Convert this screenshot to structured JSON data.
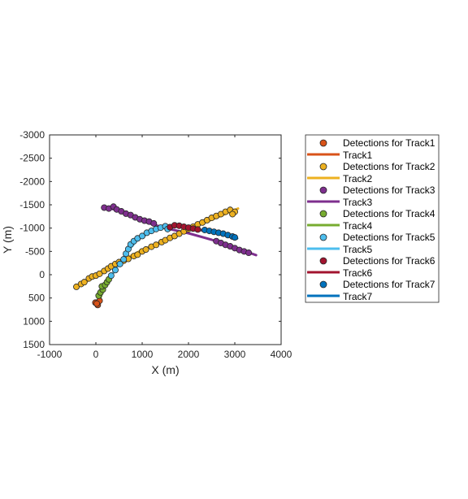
{
  "chart_data": {
    "type": "scatter",
    "title": "",
    "xlabel": "X (m)",
    "ylabel": "Y (m)",
    "xlim": [
      -1000,
      4000
    ],
    "ylim": [
      1500,
      -3000
    ],
    "y_reversed": true,
    "xticks": [
      -1000,
      0,
      1000,
      2000,
      3000,
      4000
    ],
    "xtick_labels": [
      "-1000",
      "0",
      "1000",
      "2000",
      "3000",
      "4000"
    ],
    "yticks": [
      -3000,
      -2500,
      -2000,
      -1500,
      -1000,
      -500,
      0,
      500,
      1000,
      1500
    ],
    "ytick_labels": [
      "-3000",
      "-2500",
      "-2000",
      "-1500",
      "-1000",
      "-500",
      "0",
      "500",
      "1000",
      "1500"
    ],
    "grid": false,
    "legend_position": "outside-right",
    "series": [
      {
        "name": "Track1",
        "color": "#D95319",
        "detections_label": "Detections for Track1",
        "track_label": "Track1",
        "track": [
          [
            0,
            640
          ],
          [
            40,
            580
          ],
          [
            90,
            520
          ]
        ],
        "detections": [
          [
            -10,
            600
          ],
          [
            40,
            650
          ],
          [
            80,
            560
          ],
          [
            20,
            620
          ]
        ]
      },
      {
        "name": "Track2",
        "color": "#EDB120",
        "detections_label": "Detections for Track2",
        "track_label": "Track2",
        "track": [
          [
            -450,
            290
          ],
          [
            0,
            30
          ],
          [
            500,
            -270
          ],
          [
            1000,
            -530
          ],
          [
            1500,
            -750
          ],
          [
            2000,
            -970
          ],
          [
            2500,
            -1180
          ],
          [
            3070,
            -1420
          ]
        ],
        "detections": [
          [
            -420,
            260
          ],
          [
            -320,
            200
          ],
          [
            -250,
            160
          ],
          [
            -150,
            80
          ],
          [
            -80,
            40
          ],
          [
            0,
            20
          ],
          [
            80,
            -20
          ],
          [
            180,
            -80
          ],
          [
            260,
            -130
          ],
          [
            330,
            -180
          ],
          [
            420,
            -230
          ],
          [
            500,
            -270
          ],
          [
            600,
            -300
          ],
          [
            700,
            -340
          ],
          [
            820,
            -400
          ],
          [
            900,
            -430
          ],
          [
            1000,
            -500
          ],
          [
            1080,
            -540
          ],
          [
            1200,
            -600
          ],
          [
            1300,
            -640
          ],
          [
            1420,
            -700
          ],
          [
            1500,
            -740
          ],
          [
            1600,
            -790
          ],
          [
            1700,
            -830
          ],
          [
            1800,
            -880
          ],
          [
            1900,
            -930
          ],
          [
            2000,
            -980
          ],
          [
            2100,
            -1030
          ],
          [
            2200,
            -1080
          ],
          [
            2300,
            -1120
          ],
          [
            2400,
            -1170
          ],
          [
            2500,
            -1220
          ],
          [
            2600,
            -1260
          ],
          [
            2700,
            -1300
          ],
          [
            2800,
            -1350
          ],
          [
            2900,
            -1390
          ],
          [
            3000,
            -1350
          ],
          [
            2950,
            -1300
          ]
        ]
      },
      {
        "name": "Track3",
        "color": "#7E2F8E",
        "detections_label": "Detections for Track3",
        "track_label": "Track3",
        "track": [
          [
            180,
            -1450
          ],
          [
            500,
            -1380
          ],
          [
            800,
            -1240
          ],
          [
            1100,
            -1120
          ],
          [
            1500,
            -1000
          ],
          [
            2000,
            -890
          ],
          [
            2500,
            -750
          ],
          [
            3000,
            -580
          ],
          [
            3460,
            -420
          ]
        ],
        "detections": [
          [
            180,
            -1440
          ],
          [
            280,
            -1420
          ],
          [
            380,
            -1460
          ],
          [
            450,
            -1400
          ],
          [
            550,
            -1360
          ],
          [
            650,
            -1310
          ],
          [
            750,
            -1280
          ],
          [
            850,
            -1230
          ],
          [
            950,
            -1190
          ],
          [
            1050,
            -1160
          ],
          [
            1150,
            -1140
          ],
          [
            1250,
            -1100
          ],
          [
            2600,
            -720
          ],
          [
            2700,
            -680
          ],
          [
            2800,
            -640
          ],
          [
            2900,
            -610
          ],
          [
            3000,
            -570
          ],
          [
            3100,
            -530
          ],
          [
            3200,
            -500
          ],
          [
            3300,
            -470
          ]
        ]
      },
      {
        "name": "Track4",
        "color": "#77AC30",
        "detections_label": "Detections for Track4",
        "track_label": "Track4",
        "track": [
          [
            90,
            520
          ],
          [
            150,
            350
          ],
          [
            220,
            200
          ],
          [
            300,
            80
          ]
        ],
        "detections": [
          [
            60,
            450
          ],
          [
            100,
            380
          ],
          [
            150,
            320
          ],
          [
            130,
            250
          ],
          [
            200,
            220
          ],
          [
            240,
            160
          ],
          [
            280,
            100
          ]
        ]
      },
      {
        "name": "Track5",
        "color": "#4DBEEE",
        "detections_label": "Detections for Track5",
        "track_label": "Track5",
        "track": [
          [
            300,
            80
          ],
          [
            500,
            -230
          ],
          [
            700,
            -520
          ],
          [
            900,
            -750
          ],
          [
            1200,
            -930
          ],
          [
            1550,
            -1030
          ]
        ],
        "detections": [
          [
            330,
            20
          ],
          [
            420,
            -100
          ],
          [
            520,
            -230
          ],
          [
            600,
            -330
          ],
          [
            650,
            -450
          ],
          [
            700,
            -550
          ],
          [
            750,
            -650
          ],
          [
            820,
            -720
          ],
          [
            900,
            -780
          ],
          [
            1000,
            -830
          ],
          [
            1100,
            -900
          ],
          [
            1200,
            -940
          ],
          [
            1300,
            -980
          ],
          [
            1400,
            -1010
          ],
          [
            1500,
            -1040
          ],
          [
            1550,
            -980
          ]
        ]
      },
      {
        "name": "Track6",
        "color": "#A2142F",
        "detections_label": "Detections for Track6",
        "track_label": "Track6",
        "track": [
          [
            1550,
            -1030
          ],
          [
            1800,
            -1040
          ],
          [
            2050,
            -1000
          ],
          [
            2300,
            -950
          ]
        ],
        "detections": [
          [
            1600,
            -1020
          ],
          [
            1700,
            -1060
          ],
          [
            1800,
            -1050
          ],
          [
            1900,
            -1030
          ],
          [
            2000,
            -1010
          ],
          [
            2100,
            -990
          ],
          [
            2200,
            -970
          ]
        ]
      },
      {
        "name": "Track7",
        "color": "#0072BD",
        "detections_label": "Detections for Track7",
        "track_label": "Track7",
        "track": [
          [
            2300,
            -950
          ],
          [
            2550,
            -910
          ],
          [
            2800,
            -850
          ],
          [
            3050,
            -780
          ]
        ],
        "detections": [
          [
            2350,
            -960
          ],
          [
            2450,
            -940
          ],
          [
            2550,
            -920
          ],
          [
            2650,
            -900
          ],
          [
            2750,
            -880
          ],
          [
            2850,
            -850
          ],
          [
            2950,
            -820
          ],
          [
            3000,
            -800
          ]
        ]
      }
    ]
  }
}
